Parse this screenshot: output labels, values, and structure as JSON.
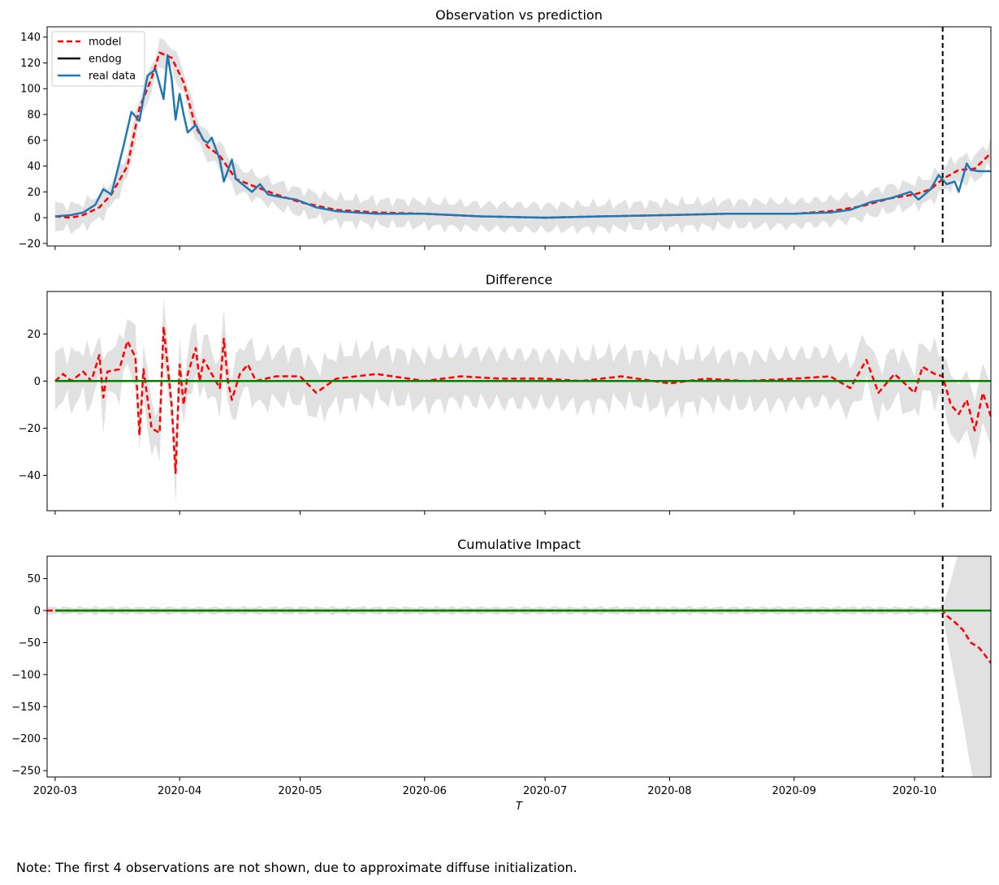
{
  "chart_data": [
    {
      "type": "line",
      "title": "Observation vs prediction",
      "ylim": [
        -22,
        148
      ],
      "yticks": [
        -20,
        0,
        20,
        40,
        60,
        80,
        100,
        120,
        140
      ],
      "intervention_date": "2020-10-08",
      "legend": {
        "placement": "top-left",
        "entries": [
          "model",
          "endog",
          "real data"
        ]
      },
      "band": "lightgrey confidence interval around model",
      "series": [
        {
          "name": "model",
          "style": "dashed",
          "color": "#ff0000",
          "x": [
            "2020-03-01",
            "2020-03-05",
            "2020-03-08",
            "2020-03-12",
            "2020-03-15",
            "2020-03-19",
            "2020-03-22",
            "2020-03-25",
            "2020-03-27",
            "2020-03-30",
            "2020-04-02",
            "2020-04-05",
            "2020-04-08",
            "2020-04-11",
            "2020-04-15",
            "2020-04-19",
            "2020-04-25",
            "2020-05-01",
            "2020-05-10",
            "2020-05-20",
            "2020-06-01",
            "2020-06-15",
            "2020-07-01",
            "2020-07-15",
            "2020-08-01",
            "2020-08-15",
            "2020-09-01",
            "2020-09-10",
            "2020-09-18",
            "2020-09-25",
            "2020-10-01",
            "2020-10-05",
            "2020-10-08",
            "2020-10-12",
            "2020-10-16",
            "2020-10-20"
          ],
          "values": [
            1,
            0,
            2,
            8,
            18,
            40,
            85,
            108,
            128,
            124,
            105,
            70,
            55,
            48,
            30,
            25,
            18,
            12,
            6,
            4,
            3,
            1,
            0,
            1,
            2,
            3,
            3,
            5,
            9,
            15,
            18,
            22,
            30,
            37,
            38,
            50
          ]
        },
        {
          "name": "real data",
          "style": "solid",
          "color": "#1f77b4",
          "x": [
            "2020-03-01",
            "2020-03-05",
            "2020-03-08",
            "2020-03-11",
            "2020-03-13",
            "2020-03-15",
            "2020-03-18",
            "2020-03-20",
            "2020-03-22",
            "2020-03-24",
            "2020-03-26",
            "2020-03-28",
            "2020-03-29",
            "2020-03-30",
            "2020-03-31",
            "2020-04-01",
            "2020-04-02",
            "2020-04-03",
            "2020-04-05",
            "2020-04-07",
            "2020-04-08",
            "2020-04-09",
            "2020-04-11",
            "2020-04-12",
            "2020-04-14",
            "2020-04-15",
            "2020-04-17",
            "2020-04-19",
            "2020-04-21",
            "2020-04-23",
            "2020-04-26",
            "2020-04-30",
            "2020-05-05",
            "2020-05-10",
            "2020-05-15",
            "2020-05-20",
            "2020-06-01",
            "2020-06-15",
            "2020-07-01",
            "2020-07-15",
            "2020-08-01",
            "2020-08-15",
            "2020-09-01",
            "2020-09-10",
            "2020-09-15",
            "2020-09-20",
            "2020-09-25",
            "2020-09-30",
            "2020-10-02",
            "2020-10-05",
            "2020-10-07",
            "2020-10-09",
            "2020-10-11",
            "2020-10-12",
            "2020-10-14",
            "2020-10-15",
            "2020-10-17",
            "2020-10-20"
          ],
          "values": [
            1,
            2,
            4,
            10,
            22,
            18,
            55,
            82,
            75,
            110,
            115,
            92,
            126,
            108,
            76,
            96,
            80,
            66,
            72,
            60,
            58,
            62,
            45,
            28,
            45,
            30,
            25,
            20,
            26,
            18,
            16,
            14,
            8,
            5,
            4,
            3,
            3,
            1,
            0,
            1,
            2,
            3,
            3,
            4,
            6,
            12,
            15,
            20,
            14,
            22,
            33,
            26,
            28,
            20,
            42,
            37,
            36,
            36
          ]
        },
        {
          "name": "endog",
          "style": "solid",
          "color": "#000000",
          "x": [],
          "values": []
        }
      ]
    },
    {
      "type": "line",
      "title": "Difference",
      "ylim": [
        -55,
        38
      ],
      "yticks": [
        -40,
        -20,
        0,
        20
      ],
      "intervention_date": "2020-10-08",
      "series": [
        {
          "name": "",
          "style": "dashed",
          "color": "#ff0000",
          "x": [
            "2020-03-01",
            "2020-03-03",
            "2020-03-05",
            "2020-03-08",
            "2020-03-10",
            "2020-03-12",
            "2020-03-13",
            "2020-03-14",
            "2020-03-17",
            "2020-03-19",
            "2020-03-21",
            "2020-03-22",
            "2020-03-23",
            "2020-03-25",
            "2020-03-27",
            "2020-03-28",
            "2020-03-30",
            "2020-03-31",
            "2020-04-01",
            "2020-04-02",
            "2020-04-03",
            "2020-04-05",
            "2020-04-06",
            "2020-04-07",
            "2020-04-09",
            "2020-04-11",
            "2020-04-12",
            "2020-04-13",
            "2020-04-14",
            "2020-04-16",
            "2020-04-18",
            "2020-04-20",
            "2020-04-25",
            "2020-05-01",
            "2020-05-05",
            "2020-05-10",
            "2020-05-20",
            "2020-06-01",
            "2020-06-10",
            "2020-06-20",
            "2020-07-01",
            "2020-07-10",
            "2020-07-20",
            "2020-08-01",
            "2020-08-10",
            "2020-08-20",
            "2020-09-01",
            "2020-09-10",
            "2020-09-15",
            "2020-09-19",
            "2020-09-22",
            "2020-09-26",
            "2020-10-01",
            "2020-10-03",
            "2020-10-06",
            "2020-10-08",
            "2020-10-10",
            "2020-10-12",
            "2020-10-14",
            "2020-10-16",
            "2020-10-18",
            "2020-10-20"
          ],
          "values": [
            0,
            3,
            0,
            4,
            0,
            11,
            -7,
            4,
            5,
            17,
            10,
            -23,
            5,
            -20,
            -22,
            23,
            -10,
            -39,
            7,
            -10,
            3,
            14,
            0,
            9,
            3,
            -3,
            18,
            0,
            -8,
            3,
            7,
            0,
            2,
            2,
            -5,
            1,
            3,
            0,
            2,
            1,
            1,
            0,
            2,
            -1,
            1,
            0,
            1,
            2,
            -3,
            9,
            -5,
            3,
            -5,
            6,
            3,
            2,
            -10,
            -14,
            -8,
            -21,
            -5,
            -15
          ]
        },
        {
          "name": "",
          "style": "solid",
          "color": "#008000",
          "x": [
            "2020-03-01",
            "2020-10-20"
          ],
          "values": [
            0,
            0
          ]
        }
      ]
    },
    {
      "type": "line",
      "title": "Cumulative Impact",
      "ylim": [
        -260,
        85
      ],
      "yticks": [
        -250,
        -200,
        -150,
        -100,
        -50,
        0,
        50
      ],
      "xlabel": "T",
      "xticks": [
        "2020-03",
        "2020-04",
        "2020-05",
        "2020-06",
        "2020-07",
        "2020-08",
        "2020-09",
        "2020-10"
      ],
      "xlim": [
        "2020-02-28",
        "2020-10-20"
      ],
      "intervention_date": "2020-10-08",
      "series": [
        {
          "name": "",
          "style": "dashed",
          "color": "#ff0000",
          "x": [
            "2020-02-28",
            "2020-03-01",
            "2020-10-08",
            "2020-10-09",
            "2020-10-11",
            "2020-10-13",
            "2020-10-15",
            "2020-10-17",
            "2020-10-18",
            "2020-10-20"
          ],
          "values": [
            0,
            0,
            0,
            -8,
            -18,
            -30,
            -50,
            -58,
            -65,
            -82
          ]
        },
        {
          "name": "",
          "style": "solid",
          "color": "#008000",
          "x": [
            "2020-03-01",
            "2020-10-20"
          ],
          "values": [
            0,
            0
          ]
        }
      ]
    }
  ],
  "note": "Note: The first 4 observations are not shown, due to approximate diffuse initialization."
}
